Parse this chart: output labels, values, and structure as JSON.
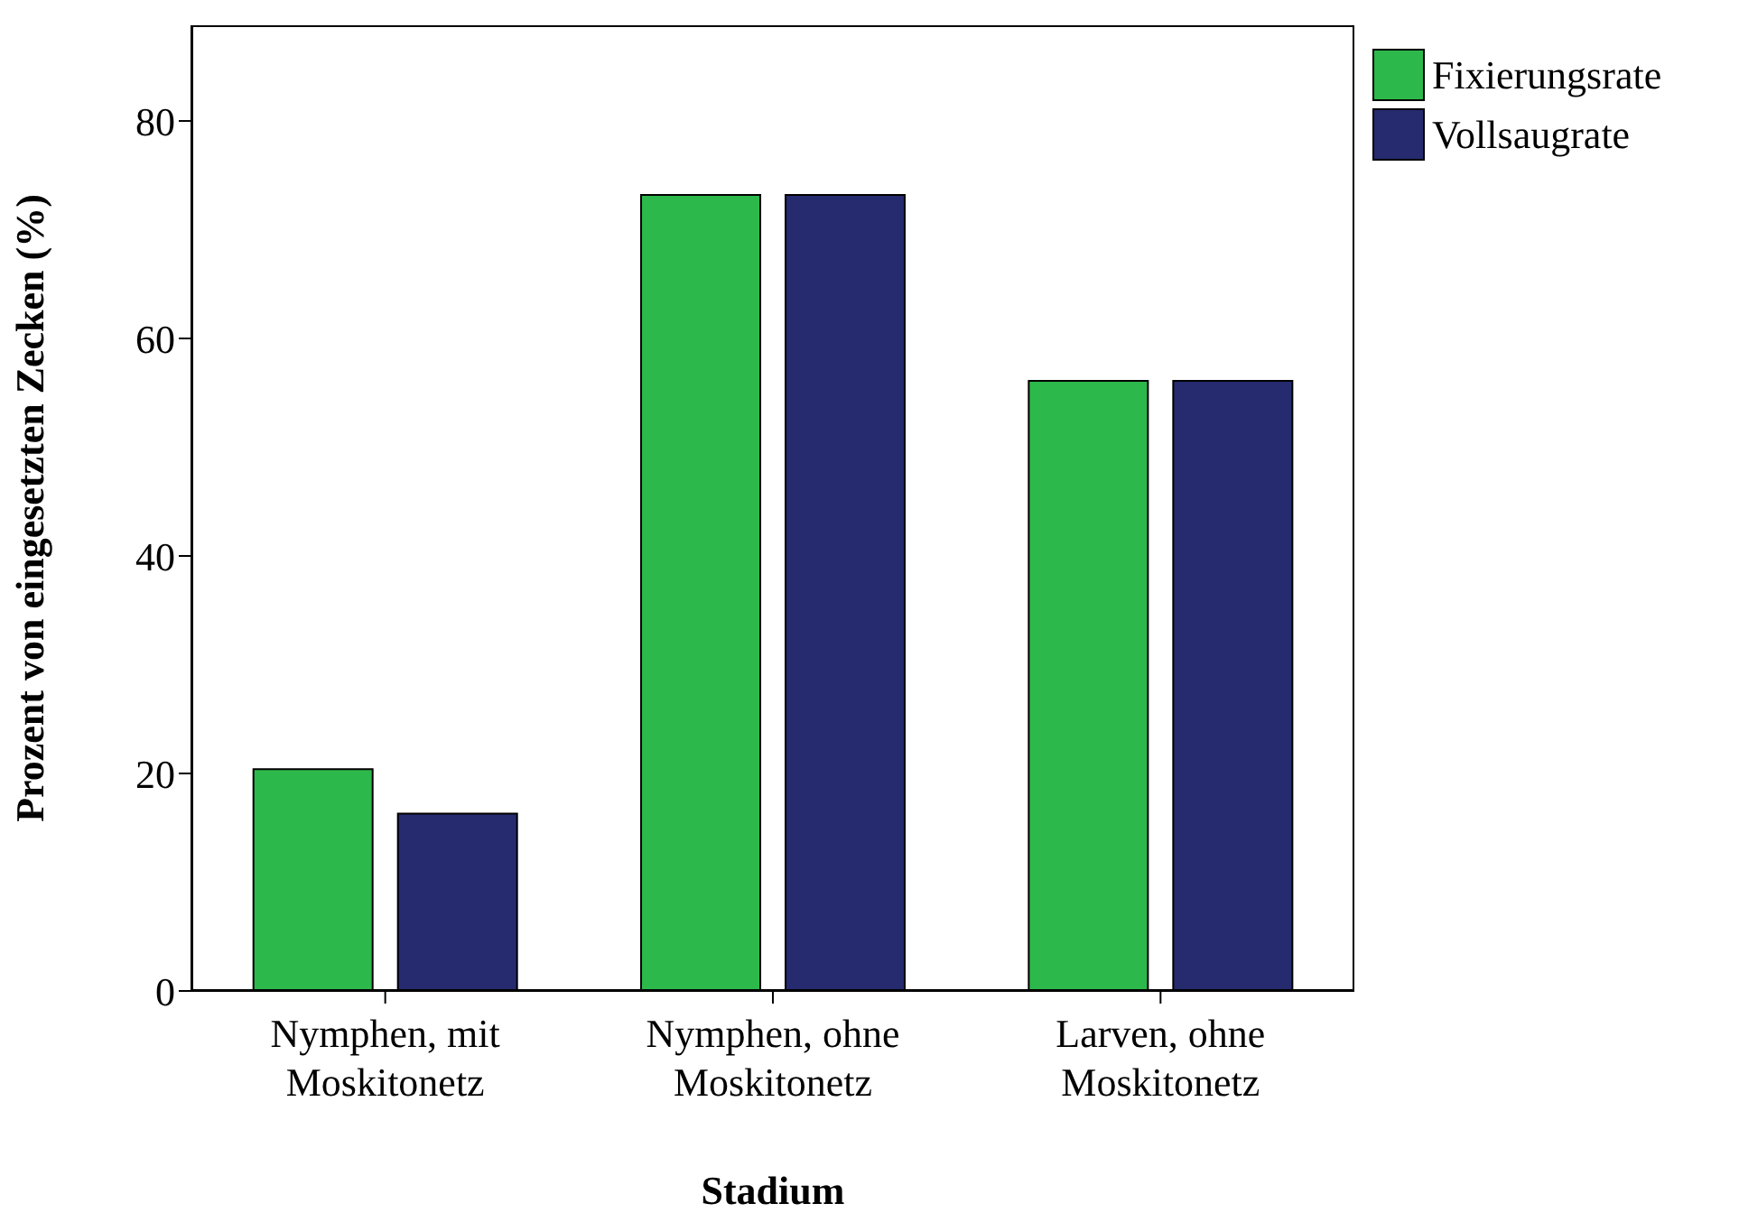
{
  "chart_data": {
    "type": "bar",
    "xlabel": "Stadium",
    "ylabel": "Prozent von eingesetzten Zecken (%)",
    "categories": [
      "Nymphen, mit Moskitonetz",
      "Nymphen, ohne Moskitonetz",
      "Larven, ohne Moskitonetz"
    ],
    "series": [
      {
        "name": "Fixierungsrate",
        "color": "#2db84b",
        "values": [
          20.4,
          73.2,
          56.1
        ]
      },
      {
        "name": "Vollsaugrate",
        "color": "#262a6e",
        "values": [
          16.3,
          73.2,
          56.1
        ]
      }
    ],
    "ylim": [
      0,
      88.8
    ],
    "yticks": [
      0,
      20,
      40,
      60,
      80
    ],
    "legend": "top right"
  }
}
